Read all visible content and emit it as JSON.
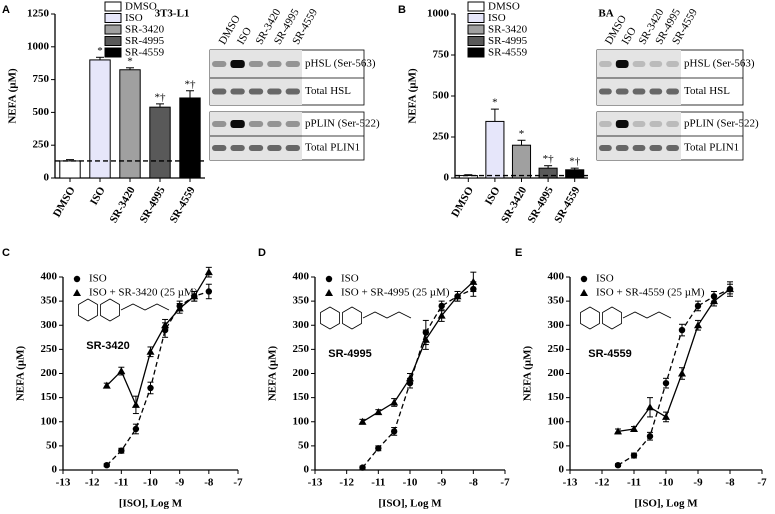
{
  "chart_data": [
    {
      "type": "bar",
      "panel": "A",
      "title": "3T3-L1",
      "ylabel": "NEFA (µM)",
      "categories": [
        "DMSO",
        "ISO",
        "SR-3420",
        "SR-4995",
        "SR-4559"
      ],
      "values": [
        130,
        900,
        825,
        540,
        610
      ],
      "errors": [
        10,
        20,
        15,
        25,
        55
      ],
      "value_annotations": [
        null,
        "*",
        "*",
        "*†",
        "*†"
      ],
      "colors": [
        "#ffffff",
        "#e6e6fa",
        "#a0a0a0",
        "#595959",
        "#000000"
      ],
      "ylim": [
        0,
        1250
      ],
      "yticks": [
        0,
        250,
        500,
        750,
        1000,
        1250
      ],
      "legend": true,
      "dashed_reference": true
    },
    {
      "type": "bar",
      "panel": "B",
      "title": "BA",
      "ylabel": "NEFA (µM)",
      "categories": [
        "DMSO",
        "ISO",
        "SR-3420",
        "SR-4995",
        "SR-4559"
      ],
      "values": [
        15,
        345,
        200,
        60,
        50
      ],
      "errors": [
        5,
        75,
        30,
        15,
        10
      ],
      "value_annotations": [
        null,
        "*",
        "*",
        "*†",
        "*†"
      ],
      "colors": [
        "#ffffff",
        "#e6e6fa",
        "#a0a0a0",
        "#595959",
        "#000000"
      ],
      "ylim": [
        0,
        1000
      ],
      "yticks": [
        0,
        250,
        500,
        750,
        1000
      ],
      "legend": true,
      "dashed_reference": true
    },
    {
      "type": "line",
      "panel": "C",
      "ylabel": "NEFA (µM)",
      "xlabel": "[ISO], Log M",
      "structure_label": "SR-3420",
      "x": [
        -11.5,
        -11,
        -10.5,
        -10,
        -9.5,
        -9,
        -8.5,
        -8
      ],
      "series": [
        {
          "name": "ISO",
          "marker": "circle",
          "dashed": true,
          "values": [
            10,
            40,
            85,
            170,
            290,
            340,
            360,
            370
          ],
          "errors": [
            3,
            5,
            10,
            12,
            15,
            10,
            10,
            15
          ]
        },
        {
          "name": "ISO + SR-3420 (25 µM)",
          "marker": "triangle",
          "dashed": false,
          "values": [
            175,
            205,
            135,
            245,
            300,
            335,
            360,
            410
          ],
          "errors": [
            5,
            8,
            18,
            10,
            12,
            10,
            10,
            10
          ]
        }
      ],
      "xlim": [
        -13,
        -7
      ],
      "xticks": [
        -13,
        -12,
        -11,
        -10,
        -9,
        -8,
        -7
      ],
      "ylim": [
        0,
        400
      ],
      "yticks": [
        0,
        50,
        100,
        150,
        200,
        250,
        300,
        350,
        400
      ]
    },
    {
      "type": "line",
      "panel": "D",
      "ylabel": "NEFA (µM)",
      "xlabel": "[ISO], Log M",
      "structure_label": "SR-4995",
      "x": [
        -11.5,
        -11,
        -10.5,
        -10,
        -9.5,
        -9,
        -8.5,
        -8
      ],
      "series": [
        {
          "name": "ISO",
          "marker": "circle",
          "dashed": true,
          "values": [
            5,
            45,
            80,
            180,
            285,
            340,
            360,
            375
          ],
          "errors": [
            3,
            5,
            8,
            10,
            25,
            10,
            10,
            15
          ]
        },
        {
          "name": "ISO + SR-4995 (25 µM)",
          "marker": "triangle",
          "dashed": false,
          "values": [
            100,
            120,
            140,
            190,
            270,
            320,
            360,
            390
          ],
          "errors": [
            5,
            5,
            8,
            10,
            20,
            12,
            10,
            20
          ]
        }
      ],
      "xlim": [
        -13,
        -7
      ],
      "xticks": [
        -13,
        -12,
        -11,
        -10,
        -9,
        -8,
        -7
      ],
      "ylim": [
        0,
        400
      ],
      "yticks": [
        0,
        50,
        100,
        150,
        200,
        250,
        300,
        350,
        400
      ]
    },
    {
      "type": "line",
      "panel": "E",
      "ylabel": "NEFA (µM)",
      "xlabel": "[ISO], Log M",
      "structure_label": "SR-4559",
      "x": [
        -11.5,
        -11,
        -10.5,
        -10,
        -9.5,
        -9,
        -8.5,
        -8
      ],
      "series": [
        {
          "name": "ISO",
          "marker": "circle",
          "dashed": true,
          "values": [
            10,
            30,
            70,
            180,
            290,
            340,
            360,
            375
          ],
          "errors": [
            3,
            5,
            8,
            10,
            12,
            10,
            10,
            15
          ]
        },
        {
          "name": "ISO + SR-4559 (25 µM)",
          "marker": "triangle",
          "dashed": false,
          "values": [
            80,
            85,
            130,
            110,
            200,
            300,
            350,
            375
          ],
          "errors": [
            5,
            5,
            20,
            10,
            12,
            10,
            10,
            10
          ]
        }
      ],
      "xlim": [
        -13,
        -7
      ],
      "xticks": [
        -13,
        -12,
        -11,
        -10,
        -9,
        -8,
        -7
      ],
      "ylim": [
        0,
        400
      ],
      "yticks": [
        0,
        50,
        100,
        150,
        200,
        250,
        300,
        350,
        400
      ]
    }
  ],
  "blots": [
    {
      "lanes": [
        "DMSO",
        "ISO",
        "SR-3420",
        "SR-4995",
        "SR-4559"
      ],
      "rows": [
        [
          "pHSL (Ser-563)",
          "Total HSL"
        ],
        [
          "pPLIN (Ser-522)",
          "Total PLIN1"
        ]
      ]
    },
    {
      "lanes": [
        "DMSO",
        "ISO",
        "SR-3420",
        "SR-4995",
        "SR-4559"
      ],
      "rows": [
        [
          "pHSL (Ser-563)",
          "Total HSL"
        ],
        [
          "pPLIN (Ser-522)",
          "Total PLIN1"
        ]
      ]
    }
  ]
}
